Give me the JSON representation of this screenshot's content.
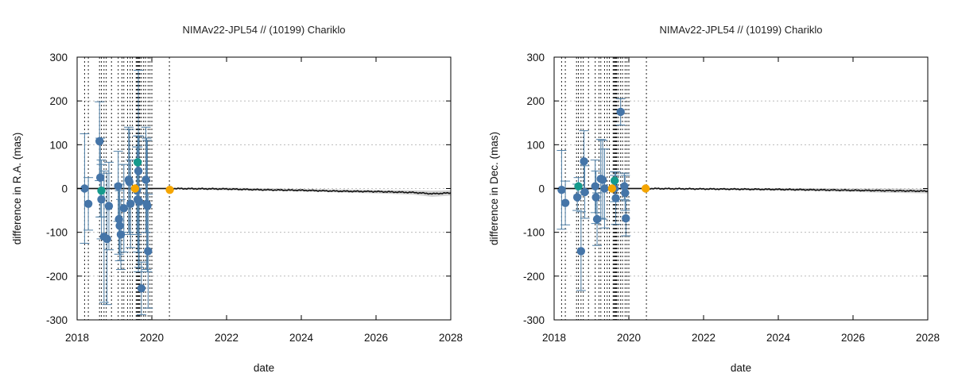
{
  "chart_data": [
    {
      "type": "scatter",
      "title": "NIMAv22-JPL54 // (10199) Chariklo",
      "xlabel": "date",
      "ylabel": "difference in R.A. (mas)",
      "xlim": [
        2018,
        2028
      ],
      "ylim": [
        -300,
        300
      ],
      "xticks": [
        2018,
        2020,
        2022,
        2024,
        2026,
        2028
      ],
      "yticks": [
        -300,
        -200,
        -100,
        0,
        100,
        200,
        300
      ],
      "xtick_labels": [
        "2018",
        "2020",
        "2022",
        "2024",
        "2026",
        "2028"
      ],
      "ytick_labels": [
        "-300",
        "-200",
        "-100",
        "0",
        "100",
        "200",
        "300"
      ],
      "grid": "horizontal dotted",
      "vlines": [
        2018.2,
        2018.3,
        2018.6,
        2018.65,
        2018.72,
        2018.78,
        2018.92,
        2019.1,
        2019.2,
        2019.25,
        2019.35,
        2019.42,
        2019.48,
        2019.58,
        2019.6,
        2019.62,
        2019.64,
        2019.66,
        2019.68,
        2019.72,
        2019.78,
        2019.83,
        2019.9,
        2019.95,
        2020.0,
        2020.47
      ],
      "series": [
        {
          "color": "#4575a8",
          "points": [
            {
              "x": 2018.2,
              "y": 0,
              "err": 125
            },
            {
              "x": 2018.3,
              "y": -35,
              "err": 60
            },
            {
              "x": 2018.6,
              "y": 108,
              "err": 90
            },
            {
              "x": 2018.62,
              "y": 25,
              "err": 90
            },
            {
              "x": 2018.65,
              "y": -25,
              "err": 90
            },
            {
              "x": 2018.72,
              "y": -110,
              "err": 150
            },
            {
              "x": 2018.8,
              "y": -115,
              "err": 150
            },
            {
              "x": 2018.85,
              "y": -40,
              "err": 100
            },
            {
              "x": 2019.1,
              "y": 5,
              "err": 80
            },
            {
              "x": 2019.12,
              "y": -70,
              "err": 80
            },
            {
              "x": 2019.14,
              "y": -85,
              "err": 80
            },
            {
              "x": 2019.17,
              "y": -105,
              "err": 80
            },
            {
              "x": 2019.25,
              "y": -45,
              "err": 100
            },
            {
              "x": 2019.38,
              "y": 20,
              "err": 120
            },
            {
              "x": 2019.4,
              "y": 15,
              "err": 120
            },
            {
              "x": 2019.43,
              "y": -35,
              "err": 100
            },
            {
              "x": 2019.6,
              "y": -5,
              "err": 100
            },
            {
              "x": 2019.62,
              "y": -25,
              "err": 120
            },
            {
              "x": 2019.64,
              "y": 40,
              "err": 230
            },
            {
              "x": 2019.66,
              "y": -30,
              "err": 150
            },
            {
              "x": 2019.72,
              "y": -228,
              "err": 60
            },
            {
              "x": 2019.84,
              "y": 20,
              "err": 120
            },
            {
              "x": 2019.86,
              "y": -35,
              "err": 150
            },
            {
              "x": 2019.88,
              "y": -40,
              "err": 150
            },
            {
              "x": 2019.9,
              "y": -143,
              "err": 130
            }
          ]
        },
        {
          "color": "#159a8c",
          "points": [
            {
              "x": 2018.65,
              "y": -5,
              "err": 60
            },
            {
              "x": 2019.62,
              "y": 60,
              "err": 60
            }
          ]
        },
        {
          "color": "#f5a500",
          "points": [
            {
              "x": 2019.55,
              "y": 0,
              "err": 0
            },
            {
              "x": 2020.48,
              "y": -3,
              "err": 0
            }
          ]
        }
      ],
      "model_line": {
        "color": "#111111",
        "band_color": "#c8c8c8",
        "points": [
          [
            2018,
            0
          ],
          [
            2020.5,
            0
          ],
          [
            2022,
            -1
          ],
          [
            2023,
            -3
          ],
          [
            2024,
            -4
          ],
          [
            2025,
            -6
          ],
          [
            2026,
            -7
          ],
          [
            2027,
            -9
          ],
          [
            2027.5,
            -12
          ],
          [
            2028,
            -10
          ]
        ],
        "band": [
          [
            2018,
            2
          ],
          [
            2020.5,
            2
          ],
          [
            2022,
            3
          ],
          [
            2024,
            3
          ],
          [
            2026,
            4
          ],
          [
            2027,
            5
          ],
          [
            2027.5,
            7
          ],
          [
            2028,
            6
          ]
        ]
      }
    },
    {
      "type": "scatter",
      "title": "NIMAv22-JPL54 // (10199) Chariklo",
      "xlabel": "date",
      "ylabel": "difference in Dec. (mas)",
      "xlim": [
        2018,
        2028
      ],
      "ylim": [
        -300,
        300
      ],
      "xticks": [
        2018,
        2020,
        2022,
        2024,
        2026,
        2028
      ],
      "yticks": [
        -300,
        -200,
        -100,
        0,
        100,
        200,
        300
      ],
      "xtick_labels": [
        "2018",
        "2020",
        "2022",
        "2024",
        "2026",
        "2028"
      ],
      "ytick_labels": [
        "-300",
        "-200",
        "-100",
        "0",
        "100",
        "200",
        "300"
      ],
      "grid": "horizontal dotted",
      "vlines": [
        2018.2,
        2018.3,
        2018.6,
        2018.65,
        2018.72,
        2018.78,
        2018.92,
        2019.1,
        2019.2,
        2019.25,
        2019.35,
        2019.42,
        2019.48,
        2019.58,
        2019.6,
        2019.62,
        2019.64,
        2019.66,
        2019.68,
        2019.72,
        2019.78,
        2019.83,
        2019.9,
        2019.95,
        2020.0,
        2020.47
      ],
      "series": [
        {
          "color": "#4575a8",
          "points": [
            {
              "x": 2018.2,
              "y": -3,
              "err": 90
            },
            {
              "x": 2018.3,
              "y": -33,
              "err": 50
            },
            {
              "x": 2018.62,
              "y": -20,
              "err": 30
            },
            {
              "x": 2018.72,
              "y": -143,
              "err": 90
            },
            {
              "x": 2018.8,
              "y": 62,
              "err": 70
            },
            {
              "x": 2018.82,
              "y": -8,
              "err": 60
            },
            {
              "x": 2019.1,
              "y": 5,
              "err": 60
            },
            {
              "x": 2019.12,
              "y": -20,
              "err": 60
            },
            {
              "x": 2019.15,
              "y": -70,
              "err": 60
            },
            {
              "x": 2019.25,
              "y": 22,
              "err": 90
            },
            {
              "x": 2019.3,
              "y": 20,
              "err": 90
            },
            {
              "x": 2019.35,
              "y": 0,
              "err": 90
            },
            {
              "x": 2019.62,
              "y": 0,
              "err": 30
            },
            {
              "x": 2019.65,
              "y": -22,
              "err": 60
            },
            {
              "x": 2019.78,
              "y": 175,
              "err": 30
            },
            {
              "x": 2019.88,
              "y": 5,
              "err": 30
            },
            {
              "x": 2019.9,
              "y": -10,
              "err": 40
            },
            {
              "x": 2019.92,
              "y": -68,
              "err": 40
            }
          ]
        },
        {
          "color": "#159a8c",
          "points": [
            {
              "x": 2018.65,
              "y": 5,
              "err": 20
            },
            {
              "x": 2019.62,
              "y": 18,
              "err": 20
            }
          ]
        },
        {
          "color": "#f5a500",
          "points": [
            {
              "x": 2019.55,
              "y": 0,
              "err": 0
            },
            {
              "x": 2020.45,
              "y": 0,
              "err": 0
            }
          ]
        }
      ],
      "model_line": {
        "color": "#111111",
        "band_color": "#c8c8c8",
        "points": [
          [
            2018,
            0
          ],
          [
            2020.5,
            0
          ],
          [
            2022,
            -1
          ],
          [
            2024,
            -2
          ],
          [
            2025,
            -3
          ],
          [
            2026,
            -4
          ],
          [
            2027,
            -5
          ],
          [
            2028,
            -6
          ]
        ],
        "band": [
          [
            2018,
            2
          ],
          [
            2020.5,
            2
          ],
          [
            2022,
            2
          ],
          [
            2024,
            3
          ],
          [
            2026,
            4
          ],
          [
            2027,
            5
          ],
          [
            2028,
            5
          ]
        ]
      }
    }
  ]
}
